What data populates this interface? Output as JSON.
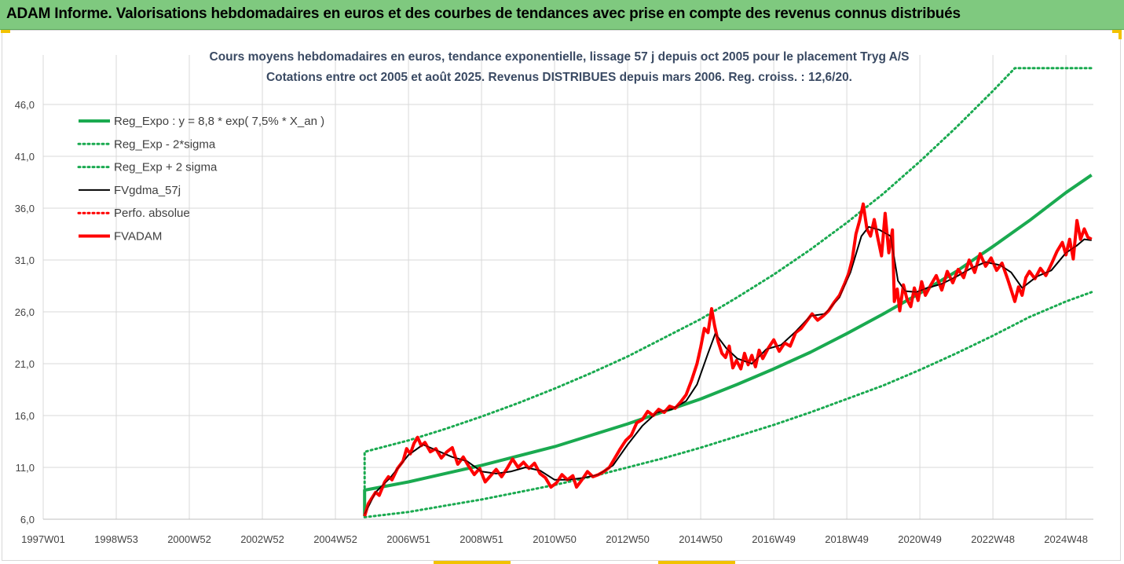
{
  "header": {
    "title": "ADAM Informe. Valorisations hebdomadaires en euros et des courbes de tendances avec prise en compte des revenus connus distribués"
  },
  "colors": {
    "header_bg": "#7fc97f",
    "trend": "#1aaa50",
    "price": "#ff0000",
    "smooth": "#000000",
    "grid": "#d9d9d9",
    "accent": "#f2c200"
  },
  "chart_data": {
    "type": "line",
    "title": [
      "Cours moyens hebdomadaires en euros, tendance exponentielle, lissage 57 j depuis oct 2005 pour le placement Tryg A/S",
      "Cotations entre oct 2005 et août 2025. Revenus DISTRIBUES depuis mars 2006. Reg. croiss. : 12,6/20."
    ],
    "xlabel": "",
    "ylabel": "",
    "x_range": [
      1997.0,
      2025.75
    ],
    "y_ticks": [
      "6,0",
      "11,0",
      "16,0",
      "21,0",
      "26,0",
      "31,0",
      "36,0",
      "41,0",
      "46,0"
    ],
    "ylim": [
      6,
      50
    ],
    "x_ticks": [
      {
        "label": "1997W01",
        "x": 1997.0
      },
      {
        "label": "1998W53",
        "x": 1999.0
      },
      {
        "label": "2000W52",
        "x": 2001.0
      },
      {
        "label": "2002W52",
        "x": 2003.0
      },
      {
        "label": "2004W52",
        "x": 2005.0
      },
      {
        "label": "2006W51",
        "x": 2007.0
      },
      {
        "label": "2008W51",
        "x": 2009.0
      },
      {
        "label": "2010W50",
        "x": 2011.0
      },
      {
        "label": "2012W50",
        "x": 2013.0
      },
      {
        "label": "2014W50",
        "x": 2015.0
      },
      {
        "label": "2016W49",
        "x": 2017.0
      },
      {
        "label": "2018W49",
        "x": 2019.0
      },
      {
        "label": "2020W49",
        "x": 2021.0
      },
      {
        "label": "2022W48",
        "x": 2023.0
      },
      {
        "label": "2024W48",
        "x": 2025.0
      }
    ],
    "legend_position": "top-left",
    "grid": "vertical + horizontal",
    "series": [
      {
        "name": "Reg_Expo : y = 8,8 * exp( 7,5% *  X_an )",
        "style": "solid-thick",
        "color": "#1aaa50",
        "points": [
          [
            2005.8,
            6.3
          ],
          [
            2005.8,
            8.8
          ],
          [
            2007,
            9.6
          ],
          [
            2008,
            10.4
          ],
          [
            2009,
            11.2
          ],
          [
            2010,
            12.1
          ],
          [
            2011,
            13.0
          ],
          [
            2012,
            14.1
          ],
          [
            2013,
            15.2
          ],
          [
            2014,
            16.4
          ],
          [
            2015,
            17.6
          ],
          [
            2016,
            19.0
          ],
          [
            2017,
            20.5
          ],
          [
            2018,
            22.1
          ],
          [
            2019,
            23.9
          ],
          [
            2020,
            25.8
          ],
          [
            2021,
            27.8
          ],
          [
            2022,
            29.9
          ],
          [
            2023,
            32.3
          ],
          [
            2024,
            34.8
          ],
          [
            2025,
            37.5
          ],
          [
            2025.7,
            39.2
          ]
        ]
      },
      {
        "name": "Reg_Exp - 2*sigma",
        "style": "dotted",
        "color": "#1aaa50",
        "points": [
          [
            2005.8,
            6.2
          ],
          [
            2007,
            6.7
          ],
          [
            2008,
            7.3
          ],
          [
            2009,
            7.9
          ],
          [
            2010,
            8.6
          ],
          [
            2011,
            9.3
          ],
          [
            2012,
            10.1
          ],
          [
            2013,
            11.0
          ],
          [
            2014,
            11.9
          ],
          [
            2015,
            12.9
          ],
          [
            2016,
            14.0
          ],
          [
            2017,
            15.1
          ],
          [
            2018,
            16.3
          ],
          [
            2019,
            17.6
          ],
          [
            2020,
            18.9
          ],
          [
            2021,
            20.4
          ],
          [
            2022,
            22.0
          ],
          [
            2023,
            23.7
          ],
          [
            2024,
            25.5
          ],
          [
            2025,
            27.0
          ],
          [
            2025.7,
            27.9
          ]
        ]
      },
      {
        "name": "Reg_Exp + 2 sigma",
        "style": "dotted",
        "color": "#1aaa50",
        "points": [
          [
            2005.8,
            6.3
          ],
          [
            2005.8,
            12.5
          ],
          [
            2007,
            13.6
          ],
          [
            2008,
            14.7
          ],
          [
            2009,
            15.9
          ],
          [
            2010,
            17.2
          ],
          [
            2011,
            18.6
          ],
          [
            2012,
            20.1
          ],
          [
            2013,
            21.7
          ],
          [
            2014,
            23.5
          ],
          [
            2015,
            25.3
          ],
          [
            2016,
            27.4
          ],
          [
            2017,
            29.6
          ],
          [
            2018,
            32.0
          ],
          [
            2019,
            34.6
          ],
          [
            2020,
            37.4
          ],
          [
            2021,
            40.5
          ],
          [
            2022,
            43.8
          ],
          [
            2023,
            47.3
          ],
          [
            2023.6,
            49.5
          ],
          [
            2025.7,
            49.5
          ]
        ]
      },
      {
        "name": "FVgdma_57j",
        "style": "solid",
        "color": "#000000",
        "points": [
          [
            2005.8,
            6.5
          ],
          [
            2006.1,
            8.6
          ],
          [
            2006.5,
            10.0
          ],
          [
            2007.0,
            12.2
          ],
          [
            2007.4,
            13.2
          ],
          [
            2007.8,
            12.6
          ],
          [
            2008.2,
            12.0
          ],
          [
            2008.6,
            11.6
          ],
          [
            2009.0,
            10.6
          ],
          [
            2009.4,
            10.4
          ],
          [
            2009.8,
            10.6
          ],
          [
            2010.2,
            11.0
          ],
          [
            2010.6,
            10.7
          ],
          [
            2011.0,
            9.8
          ],
          [
            2011.4,
            9.8
          ],
          [
            2011.8,
            10.0
          ],
          [
            2012.2,
            10.3
          ],
          [
            2012.6,
            11.2
          ],
          [
            2013.0,
            13.2
          ],
          [
            2013.4,
            15.0
          ],
          [
            2013.8,
            16.3
          ],
          [
            2014.2,
            16.6
          ],
          [
            2014.6,
            17.4
          ],
          [
            2014.9,
            19.0
          ],
          [
            2015.2,
            22.0
          ],
          [
            2015.4,
            23.9
          ],
          [
            2015.7,
            22.5
          ],
          [
            2016.0,
            21.5
          ],
          [
            2016.4,
            21.0
          ],
          [
            2016.8,
            22.4
          ],
          [
            2017.2,
            22.8
          ],
          [
            2017.6,
            24.1
          ],
          [
            2018.0,
            25.6
          ],
          [
            2018.4,
            25.8
          ],
          [
            2018.8,
            27.4
          ],
          [
            2019.1,
            29.8
          ],
          [
            2019.4,
            33.3
          ],
          [
            2019.6,
            34.2
          ],
          [
            2019.9,
            33.9
          ],
          [
            2020.2,
            33.3
          ],
          [
            2020.4,
            29.0
          ],
          [
            2020.6,
            28.0
          ],
          [
            2020.9,
            27.9
          ],
          [
            2021.2,
            28.3
          ],
          [
            2021.6,
            28.7
          ],
          [
            2022.0,
            29.4
          ],
          [
            2022.4,
            30.2
          ],
          [
            2022.8,
            30.8
          ],
          [
            2023.2,
            30.5
          ],
          [
            2023.5,
            29.8
          ],
          [
            2023.8,
            28.3
          ],
          [
            2024.2,
            29.4
          ],
          [
            2024.6,
            30.0
          ],
          [
            2025.0,
            31.7
          ],
          [
            2025.3,
            32.4
          ],
          [
            2025.5,
            33.0
          ],
          [
            2025.7,
            32.9
          ]
        ]
      },
      {
        "name": "Perfo. absolue",
        "style": "dotted",
        "color": "#ff0000",
        "points": []
      },
      {
        "name": "FVADAM",
        "style": "solid-thick",
        "color": "#ff0000",
        "points": [
          [
            2005.8,
            6.3
          ],
          [
            2005.9,
            7.5
          ],
          [
            2006.1,
            8.6
          ],
          [
            2006.2,
            8.3
          ],
          [
            2006.35,
            9.6
          ],
          [
            2006.45,
            10.1
          ],
          [
            2006.55,
            9.8
          ],
          [
            2006.7,
            10.9
          ],
          [
            2006.85,
            11.6
          ],
          [
            2006.95,
            12.8
          ],
          [
            2007.05,
            12.3
          ],
          [
            2007.15,
            13.3
          ],
          [
            2007.25,
            13.9
          ],
          [
            2007.35,
            13.1
          ],
          [
            2007.45,
            13.4
          ],
          [
            2007.6,
            12.5
          ],
          [
            2007.75,
            12.8
          ],
          [
            2007.9,
            11.9
          ],
          [
            2008.05,
            12.5
          ],
          [
            2008.2,
            12.9
          ],
          [
            2008.35,
            11.3
          ],
          [
            2008.5,
            12.0
          ],
          [
            2008.65,
            11.1
          ],
          [
            2008.8,
            10.3
          ],
          [
            2008.95,
            10.9
          ],
          [
            2009.1,
            9.6
          ],
          [
            2009.25,
            10.2
          ],
          [
            2009.4,
            10.8
          ],
          [
            2009.55,
            10.1
          ],
          [
            2009.7,
            10.9
          ],
          [
            2009.85,
            11.8
          ],
          [
            2010.0,
            11.0
          ],
          [
            2010.15,
            11.5
          ],
          [
            2010.3,
            10.9
          ],
          [
            2010.45,
            11.4
          ],
          [
            2010.6,
            10.4
          ],
          [
            2010.75,
            10.0
          ],
          [
            2010.9,
            9.1
          ],
          [
            2011.05,
            9.5
          ],
          [
            2011.2,
            10.3
          ],
          [
            2011.35,
            9.8
          ],
          [
            2011.5,
            10.2
          ],
          [
            2011.6,
            9.1
          ],
          [
            2011.75,
            9.8
          ],
          [
            2011.9,
            10.6
          ],
          [
            2012.05,
            10.1
          ],
          [
            2012.2,
            10.3
          ],
          [
            2012.35,
            10.6
          ],
          [
            2012.5,
            11.0
          ],
          [
            2012.65,
            11.9
          ],
          [
            2012.8,
            12.8
          ],
          [
            2012.95,
            13.6
          ],
          [
            2013.1,
            14.1
          ],
          [
            2013.25,
            15.3
          ],
          [
            2013.4,
            15.6
          ],
          [
            2013.55,
            16.4
          ],
          [
            2013.7,
            16.0
          ],
          [
            2013.85,
            16.6
          ],
          [
            2014.0,
            16.3
          ],
          [
            2014.15,
            16.9
          ],
          [
            2014.3,
            16.7
          ],
          [
            2014.45,
            17.3
          ],
          [
            2014.6,
            18.0
          ],
          [
            2014.75,
            19.4
          ],
          [
            2014.9,
            21.0
          ],
          [
            2015.0,
            22.6
          ],
          [
            2015.1,
            24.4
          ],
          [
            2015.2,
            24.0
          ],
          [
            2015.3,
            26.3
          ],
          [
            2015.38,
            24.7
          ],
          [
            2015.48,
            23.1
          ],
          [
            2015.58,
            22.0
          ],
          [
            2015.68,
            21.6
          ],
          [
            2015.78,
            22.7
          ],
          [
            2015.88,
            20.6
          ],
          [
            2015.98,
            21.3
          ],
          [
            2016.1,
            20.5
          ],
          [
            2016.2,
            22.0
          ],
          [
            2016.3,
            20.9
          ],
          [
            2016.4,
            21.8
          ],
          [
            2016.5,
            20.7
          ],
          [
            2016.6,
            22.3
          ],
          [
            2016.7,
            21.5
          ],
          [
            2016.85,
            22.5
          ],
          [
            2017.0,
            23.3
          ],
          [
            2017.15,
            22.2
          ],
          [
            2017.3,
            23.0
          ],
          [
            2017.45,
            22.7
          ],
          [
            2017.6,
            24.0
          ],
          [
            2017.75,
            24.4
          ],
          [
            2017.9,
            25.1
          ],
          [
            2018.05,
            25.8
          ],
          [
            2018.2,
            25.2
          ],
          [
            2018.35,
            25.6
          ],
          [
            2018.5,
            26.1
          ],
          [
            2018.65,
            26.9
          ],
          [
            2018.8,
            27.6
          ],
          [
            2018.95,
            28.8
          ],
          [
            2019.05,
            29.7
          ],
          [
            2019.15,
            31.1
          ],
          [
            2019.25,
            33.5
          ],
          [
            2019.35,
            34.8
          ],
          [
            2019.45,
            36.4
          ],
          [
            2019.55,
            34.0
          ],
          [
            2019.65,
            33.3
          ],
          [
            2019.75,
            34.9
          ],
          [
            2019.85,
            33.1
          ],
          [
            2019.95,
            31.4
          ],
          [
            2020.05,
            35.5
          ],
          [
            2020.15,
            31.7
          ],
          [
            2020.25,
            33.9
          ],
          [
            2020.3,
            27.0
          ],
          [
            2020.38,
            28.2
          ],
          [
            2020.45,
            26.1
          ],
          [
            2020.55,
            28.6
          ],
          [
            2020.65,
            27.2
          ],
          [
            2020.75,
            26.5
          ],
          [
            2020.85,
            28.3
          ],
          [
            2020.95,
            27.1
          ],
          [
            2021.05,
            28.9
          ],
          [
            2021.15,
            27.6
          ],
          [
            2021.3,
            28.6
          ],
          [
            2021.45,
            29.5
          ],
          [
            2021.6,
            28.1
          ],
          [
            2021.75,
            29.9
          ],
          [
            2021.9,
            28.8
          ],
          [
            2022.05,
            30.1
          ],
          [
            2022.2,
            29.3
          ],
          [
            2022.35,
            31.0
          ],
          [
            2022.5,
            29.8
          ],
          [
            2022.65,
            31.6
          ],
          [
            2022.8,
            30.4
          ],
          [
            2022.95,
            31.2
          ],
          [
            2023.1,
            30.0
          ],
          [
            2023.25,
            30.7
          ],
          [
            2023.4,
            29.2
          ],
          [
            2023.5,
            28.1
          ],
          [
            2023.6,
            27.0
          ],
          [
            2023.7,
            28.4
          ],
          [
            2023.8,
            27.6
          ],
          [
            2023.9,
            29.3
          ],
          [
            2024.0,
            29.9
          ],
          [
            2024.15,
            29.2
          ],
          [
            2024.3,
            30.2
          ],
          [
            2024.45,
            29.5
          ],
          [
            2024.6,
            30.6
          ],
          [
            2024.75,
            31.8
          ],
          [
            2024.9,
            32.7
          ],
          [
            2025.0,
            31.5
          ],
          [
            2025.1,
            33.0
          ],
          [
            2025.2,
            31.1
          ],
          [
            2025.3,
            34.8
          ],
          [
            2025.4,
            33.0
          ],
          [
            2025.5,
            34.0
          ],
          [
            2025.6,
            33.2
          ],
          [
            2025.7,
            33.0
          ]
        ]
      }
    ]
  }
}
